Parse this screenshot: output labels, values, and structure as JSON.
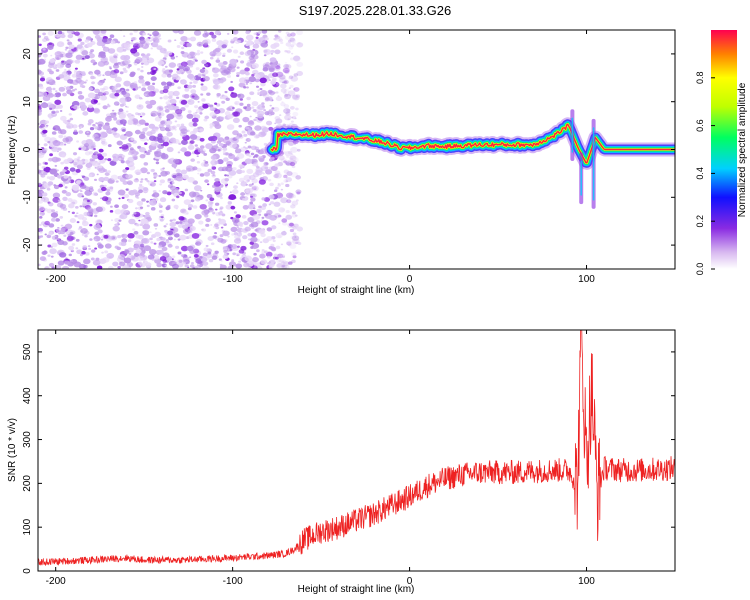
{
  "title": "S197.2025.228.01.33.G26",
  "chart_data": [
    {
      "type": "heatmap",
      "name": "spectrogram",
      "xlabel": "Height of straight line (km)",
      "ylabel": "Frequency (Hz)",
      "xlim": [
        -210,
        150
      ],
      "ylim": [
        -25,
        25
      ],
      "xticks": [
        -200,
        -100,
        0,
        100
      ],
      "yticks": [
        -20,
        -10,
        0,
        10,
        20
      ],
      "ridge": {
        "description": "dominant spectral ridge (frequency in Hz vs height in km)",
        "x": [
          -75,
          -65,
          -55,
          -45,
          -35,
          -25,
          -15,
          -5,
          0,
          10,
          20,
          30,
          40,
          50,
          60,
          70,
          80,
          90,
          95,
          100,
          105,
          110,
          130,
          150
        ],
        "freq": [
          3,
          3.2,
          3,
          3.3,
          2.8,
          2.2,
          1.5,
          0.3,
          0.3,
          0.8,
          0.6,
          0.8,
          1.0,
          1.0,
          1.0,
          1.0,
          2.5,
          5,
          0.5,
          -3,
          2.5,
          0,
          0,
          0
        ]
      },
      "colorbar": {
        "label": "Normalized spectral amplitude",
        "range": [
          0,
          1
        ],
        "ticks": [
          0.0,
          0.2,
          0.4,
          0.6,
          0.8
        ]
      }
    },
    {
      "type": "line",
      "name": "snr",
      "series": [
        {
          "name": "SNR",
          "color": "#ee2222",
          "x": [
            -210,
            -180,
            -160,
            -150,
            -130,
            -100,
            -80,
            -70,
            -65,
            -60,
            -50,
            -40,
            -30,
            -20,
            -10,
            0,
            10,
            20,
            30,
            40,
            50,
            60,
            70,
            80,
            90,
            95,
            97,
            100,
            103,
            106,
            110,
            120,
            130,
            140,
            150
          ],
          "values": [
            20,
            25,
            30,
            25,
            25,
            30,
            35,
            40,
            50,
            70,
            90,
            100,
            115,
            130,
            150,
            170,
            195,
            210,
            220,
            225,
            225,
            225,
            228,
            230,
            230,
            200,
            540,
            250,
            420,
            180,
            235,
            230,
            230,
            232,
            235
          ]
        }
      ],
      "xlabel": "Height of straight line (km)",
      "ylabel": "SNR (10 * v/v)",
      "xlim": [
        -210,
        150
      ],
      "ylim": [
        0,
        550
      ],
      "xticks": [
        -200,
        -100,
        0,
        100
      ],
      "yticks": [
        0,
        100,
        200,
        300,
        400,
        500
      ]
    }
  ]
}
